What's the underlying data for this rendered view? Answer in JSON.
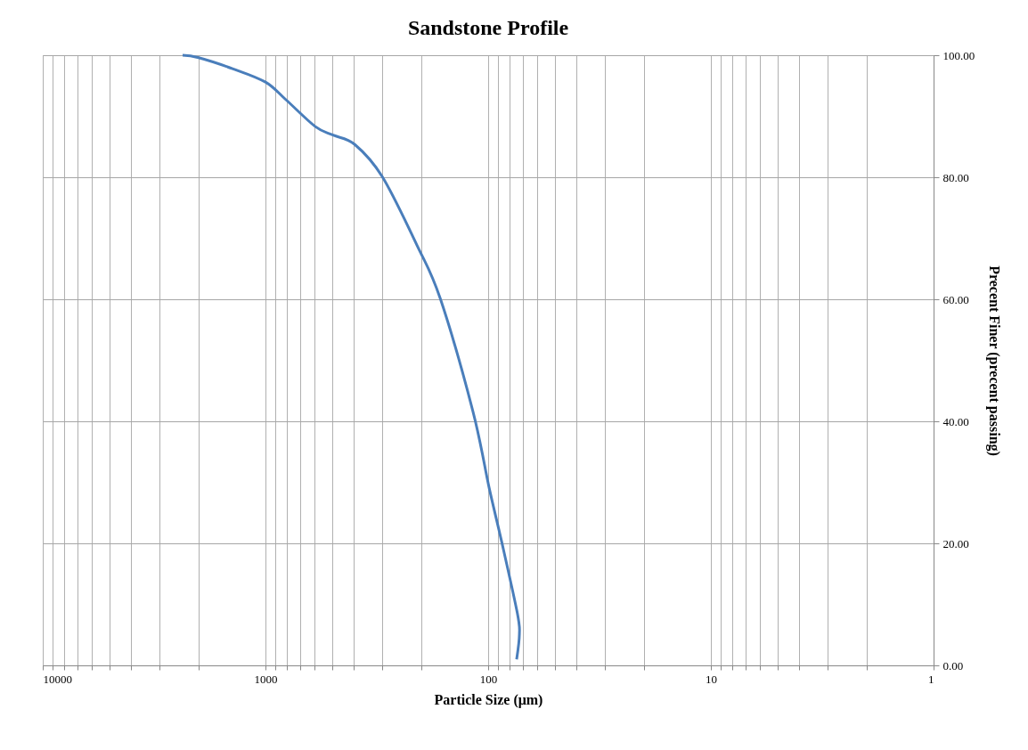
{
  "chart_data": {
    "type": "line",
    "title": "Sandstone Profile",
    "xlabel": "Particle Size (μm)",
    "ylabel": "Precent Finer (precent passing)",
    "log": "x",
    "grid": true,
    "marker": "none",
    "line_style": "solid",
    "xlim": [
      10000,
      1
    ],
    "ylim": [
      0,
      100
    ],
    "xticks": [
      10000,
      {
        "value": 9000,
        "label": null
      },
      {
        "value": 8000,
        "label": null
      },
      {
        "value": 7000,
        "label": null
      },
      {
        "value": 6000,
        "label": null
      },
      {
        "value": 5000,
        "label": null
      },
      {
        "value": 4000,
        "label": null
      },
      {
        "value": 3000,
        "label": null
      },
      {
        "value": 2000,
        "label": null
      },
      1000,
      {
        "value": 900,
        "label": null
      },
      {
        "value": 800,
        "label": null
      },
      {
        "value": 700,
        "label": null
      },
      {
        "value": 600,
        "label": null
      },
      {
        "value": 500,
        "label": null
      },
      {
        "value": 400,
        "label": null
      },
      {
        "value": 300,
        "label": null
      },
      {
        "value": 200,
        "label": null
      },
      100,
      {
        "value": 90,
        "label": null
      },
      {
        "value": 80,
        "label": null
      },
      {
        "value": 70,
        "label": null
      },
      {
        "value": 60,
        "label": null
      },
      {
        "value": 50,
        "label": null
      },
      {
        "value": 40,
        "label": null
      },
      {
        "value": 30,
        "label": null
      },
      {
        "value": 20,
        "label": null
      },
      10,
      {
        "value": 9,
        "label": null
      },
      {
        "value": 8,
        "label": null
      },
      {
        "value": 7,
        "label": null
      },
      {
        "value": 6,
        "label": null
      },
      {
        "value": 5,
        "label": null
      },
      {
        "value": 4,
        "label": null
      },
      {
        "value": 3,
        "label": null
      },
      {
        "value": 2,
        "label": null
      },
      1
    ],
    "yticks": [
      {
        "value": 0,
        "label": "0.00"
      },
      {
        "value": 20,
        "label": "20.00"
      },
      {
        "value": 40,
        "label": "40.00"
      },
      {
        "value": 60,
        "label": "60.00"
      },
      {
        "value": 80,
        "label": "80.00"
      },
      {
        "value": 100,
        "label": "100.00"
      }
    ],
    "x": [
      2355,
      1995,
      1406,
      1000,
      809,
      597,
      497,
      398,
      299,
      209,
      164,
      117,
      99,
      87,
      74,
      72.4,
      74.5
    ],
    "series": [
      {
        "color": "#4a7ebb",
        "values": [
          100,
          99.6,
          97.8,
          95.6,
          92.7,
          88.3,
          86.9,
          85.4,
          80.1,
          68.9,
          60.1,
          41.6,
          29.1,
          20.3,
          8.6,
          5.1,
          1.0
        ]
      }
    ]
  }
}
